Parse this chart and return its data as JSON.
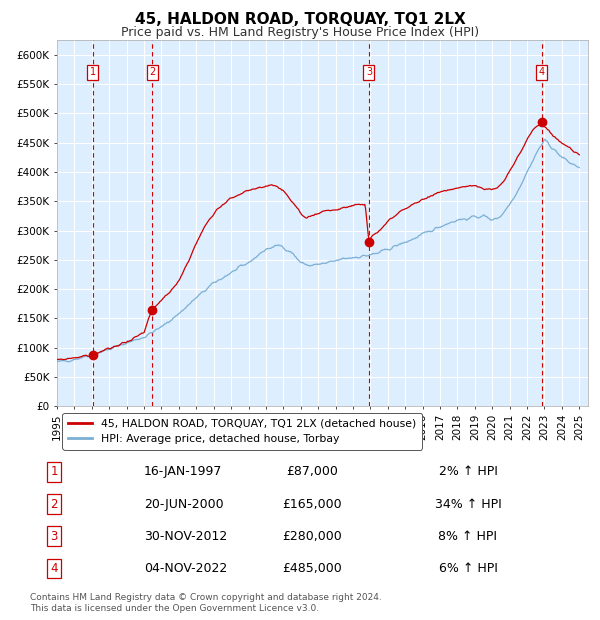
{
  "title": "45, HALDON ROAD, TORQUAY, TQ1 2LX",
  "subtitle": "Price paid vs. HM Land Registry's House Price Index (HPI)",
  "footer": "Contains HM Land Registry data © Crown copyright and database right 2024.\nThis data is licensed under the Open Government Licence v3.0.",
  "legend_label_red": "45, HALDON ROAD, TORQUAY, TQ1 2LX (detached house)",
  "legend_label_blue": "HPI: Average price, detached house, Torbay",
  "sales": [
    {
      "label": "1",
      "date_str": "16-JAN-1997",
      "date_num": 1997.04,
      "price": 87000,
      "hpi_pct": "2% ↑ HPI"
    },
    {
      "label": "2",
      "date_str": "20-JUN-2000",
      "date_num": 2000.47,
      "price": 165000,
      "hpi_pct": "34% ↑ HPI"
    },
    {
      "label": "3",
      "date_str": "30-NOV-2012",
      "date_num": 2012.92,
      "price": 280000,
      "hpi_pct": "8% ↑ HPI"
    },
    {
      "label": "4",
      "date_str": "04-NOV-2022",
      "date_num": 2022.84,
      "price": 485000,
      "hpi_pct": "6% ↑ HPI"
    }
  ],
  "ylim": [
    0,
    625000
  ],
  "xlim_start": 1995.0,
  "xlim_end": 2025.5,
  "yticks": [
    0,
    50000,
    100000,
    150000,
    200000,
    250000,
    300000,
    350000,
    400000,
    450000,
    500000,
    550000,
    600000
  ],
  "ytick_labels": [
    "£0",
    "£50K",
    "£100K",
    "£150K",
    "£200K",
    "£250K",
    "£300K",
    "£350K",
    "£400K",
    "£450K",
    "£500K",
    "£550K",
    "£600K"
  ],
  "xtick_years": [
    1995,
    1996,
    1997,
    1998,
    1999,
    2000,
    2001,
    2002,
    2003,
    2004,
    2005,
    2006,
    2007,
    2008,
    2009,
    2010,
    2011,
    2012,
    2013,
    2014,
    2015,
    2016,
    2017,
    2018,
    2019,
    2020,
    2021,
    2022,
    2023,
    2024,
    2025
  ],
  "red_color": "#cc0000",
  "blue_color": "#7bafd4",
  "bg_color": "#ddeeff",
  "grid_color": "#ffffff",
  "vline_color": "#cc0000",
  "title_fontsize": 11,
  "subtitle_fontsize": 9,
  "axis_fontsize": 7.5,
  "table_fontsize": 9,
  "footer_fontsize": 6.5,
  "hpi_key_years": [
    1995.0,
    1996.0,
    1997.0,
    1998.0,
    1999.0,
    2000.0,
    2001.0,
    2002.0,
    2003.0,
    2004.0,
    2005.0,
    2006.0,
    2007.0,
    2007.8,
    2008.5,
    2009.0,
    2009.5,
    2010.0,
    2010.5,
    2011.0,
    2011.5,
    2012.0,
    2012.5,
    2013.0,
    2013.5,
    2014.0,
    2014.5,
    2015.0,
    2015.5,
    2016.0,
    2016.5,
    2017.0,
    2017.5,
    2018.0,
    2018.5,
    2019.0,
    2019.5,
    2020.0,
    2020.5,
    2021.0,
    2021.5,
    2022.0,
    2022.5,
    2023.0,
    2023.5,
    2024.0,
    2024.5,
    2025.0
  ],
  "hpi_key_values": [
    75000,
    80000,
    88000,
    97000,
    108000,
    118000,
    135000,
    158000,
    185000,
    210000,
    228000,
    245000,
    268000,
    275000,
    262000,
    245000,
    240000,
    242000,
    244000,
    248000,
    252000,
    254000,
    256000,
    258000,
    262000,
    268000,
    274000,
    280000,
    286000,
    293000,
    300000,
    307000,
    313000,
    318000,
    320000,
    323000,
    325000,
    318000,
    325000,
    345000,
    370000,
    400000,
    430000,
    455000,
    440000,
    425000,
    415000,
    408000
  ],
  "red_key_years": [
    1995.0,
    1996.0,
    1996.5,
    1997.04,
    1997.5,
    1998.0,
    1999.0,
    2000.0,
    2000.47,
    2001.0,
    2001.5,
    2002.0,
    2002.5,
    2003.0,
    2003.5,
    2004.0,
    2004.5,
    2005.0,
    2005.5,
    2006.0,
    2006.5,
    2007.0,
    2007.3,
    2007.6,
    2008.0,
    2008.3,
    2008.7,
    2009.0,
    2009.3,
    2009.7,
    2010.0,
    2010.5,
    2011.0,
    2011.3,
    2011.7,
    2012.0,
    2012.3,
    2012.7,
    2012.92,
    2013.0,
    2013.3,
    2013.7,
    2014.0,
    2014.5,
    2015.0,
    2015.5,
    2016.0,
    2016.5,
    2017.0,
    2017.5,
    2018.0,
    2018.5,
    2019.0,
    2019.5,
    2020.0,
    2020.5,
    2021.0,
    2021.3,
    2021.7,
    2022.0,
    2022.3,
    2022.84,
    2023.0,
    2023.3,
    2023.7,
    2024.0,
    2024.5,
    2025.0
  ],
  "red_key_values": [
    78000,
    83000,
    85000,
    87000,
    93000,
    98000,
    110000,
    125000,
    165000,
    180000,
    195000,
    215000,
    245000,
    278000,
    308000,
    330000,
    345000,
    355000,
    362000,
    368000,
    372000,
    376000,
    378000,
    376000,
    368000,
    356000,
    340000,
    328000,
    322000,
    326000,
    330000,
    335000,
    335000,
    337000,
    340000,
    342000,
    344000,
    345000,
    280000,
    288000,
    295000,
    305000,
    315000,
    327000,
    338000,
    345000,
    353000,
    360000,
    365000,
    370000,
    373000,
    375000,
    376000,
    372000,
    368000,
    378000,
    400000,
    418000,
    438000,
    455000,
    470000,
    485000,
    478000,
    468000,
    457000,
    450000,
    440000,
    430000
  ]
}
